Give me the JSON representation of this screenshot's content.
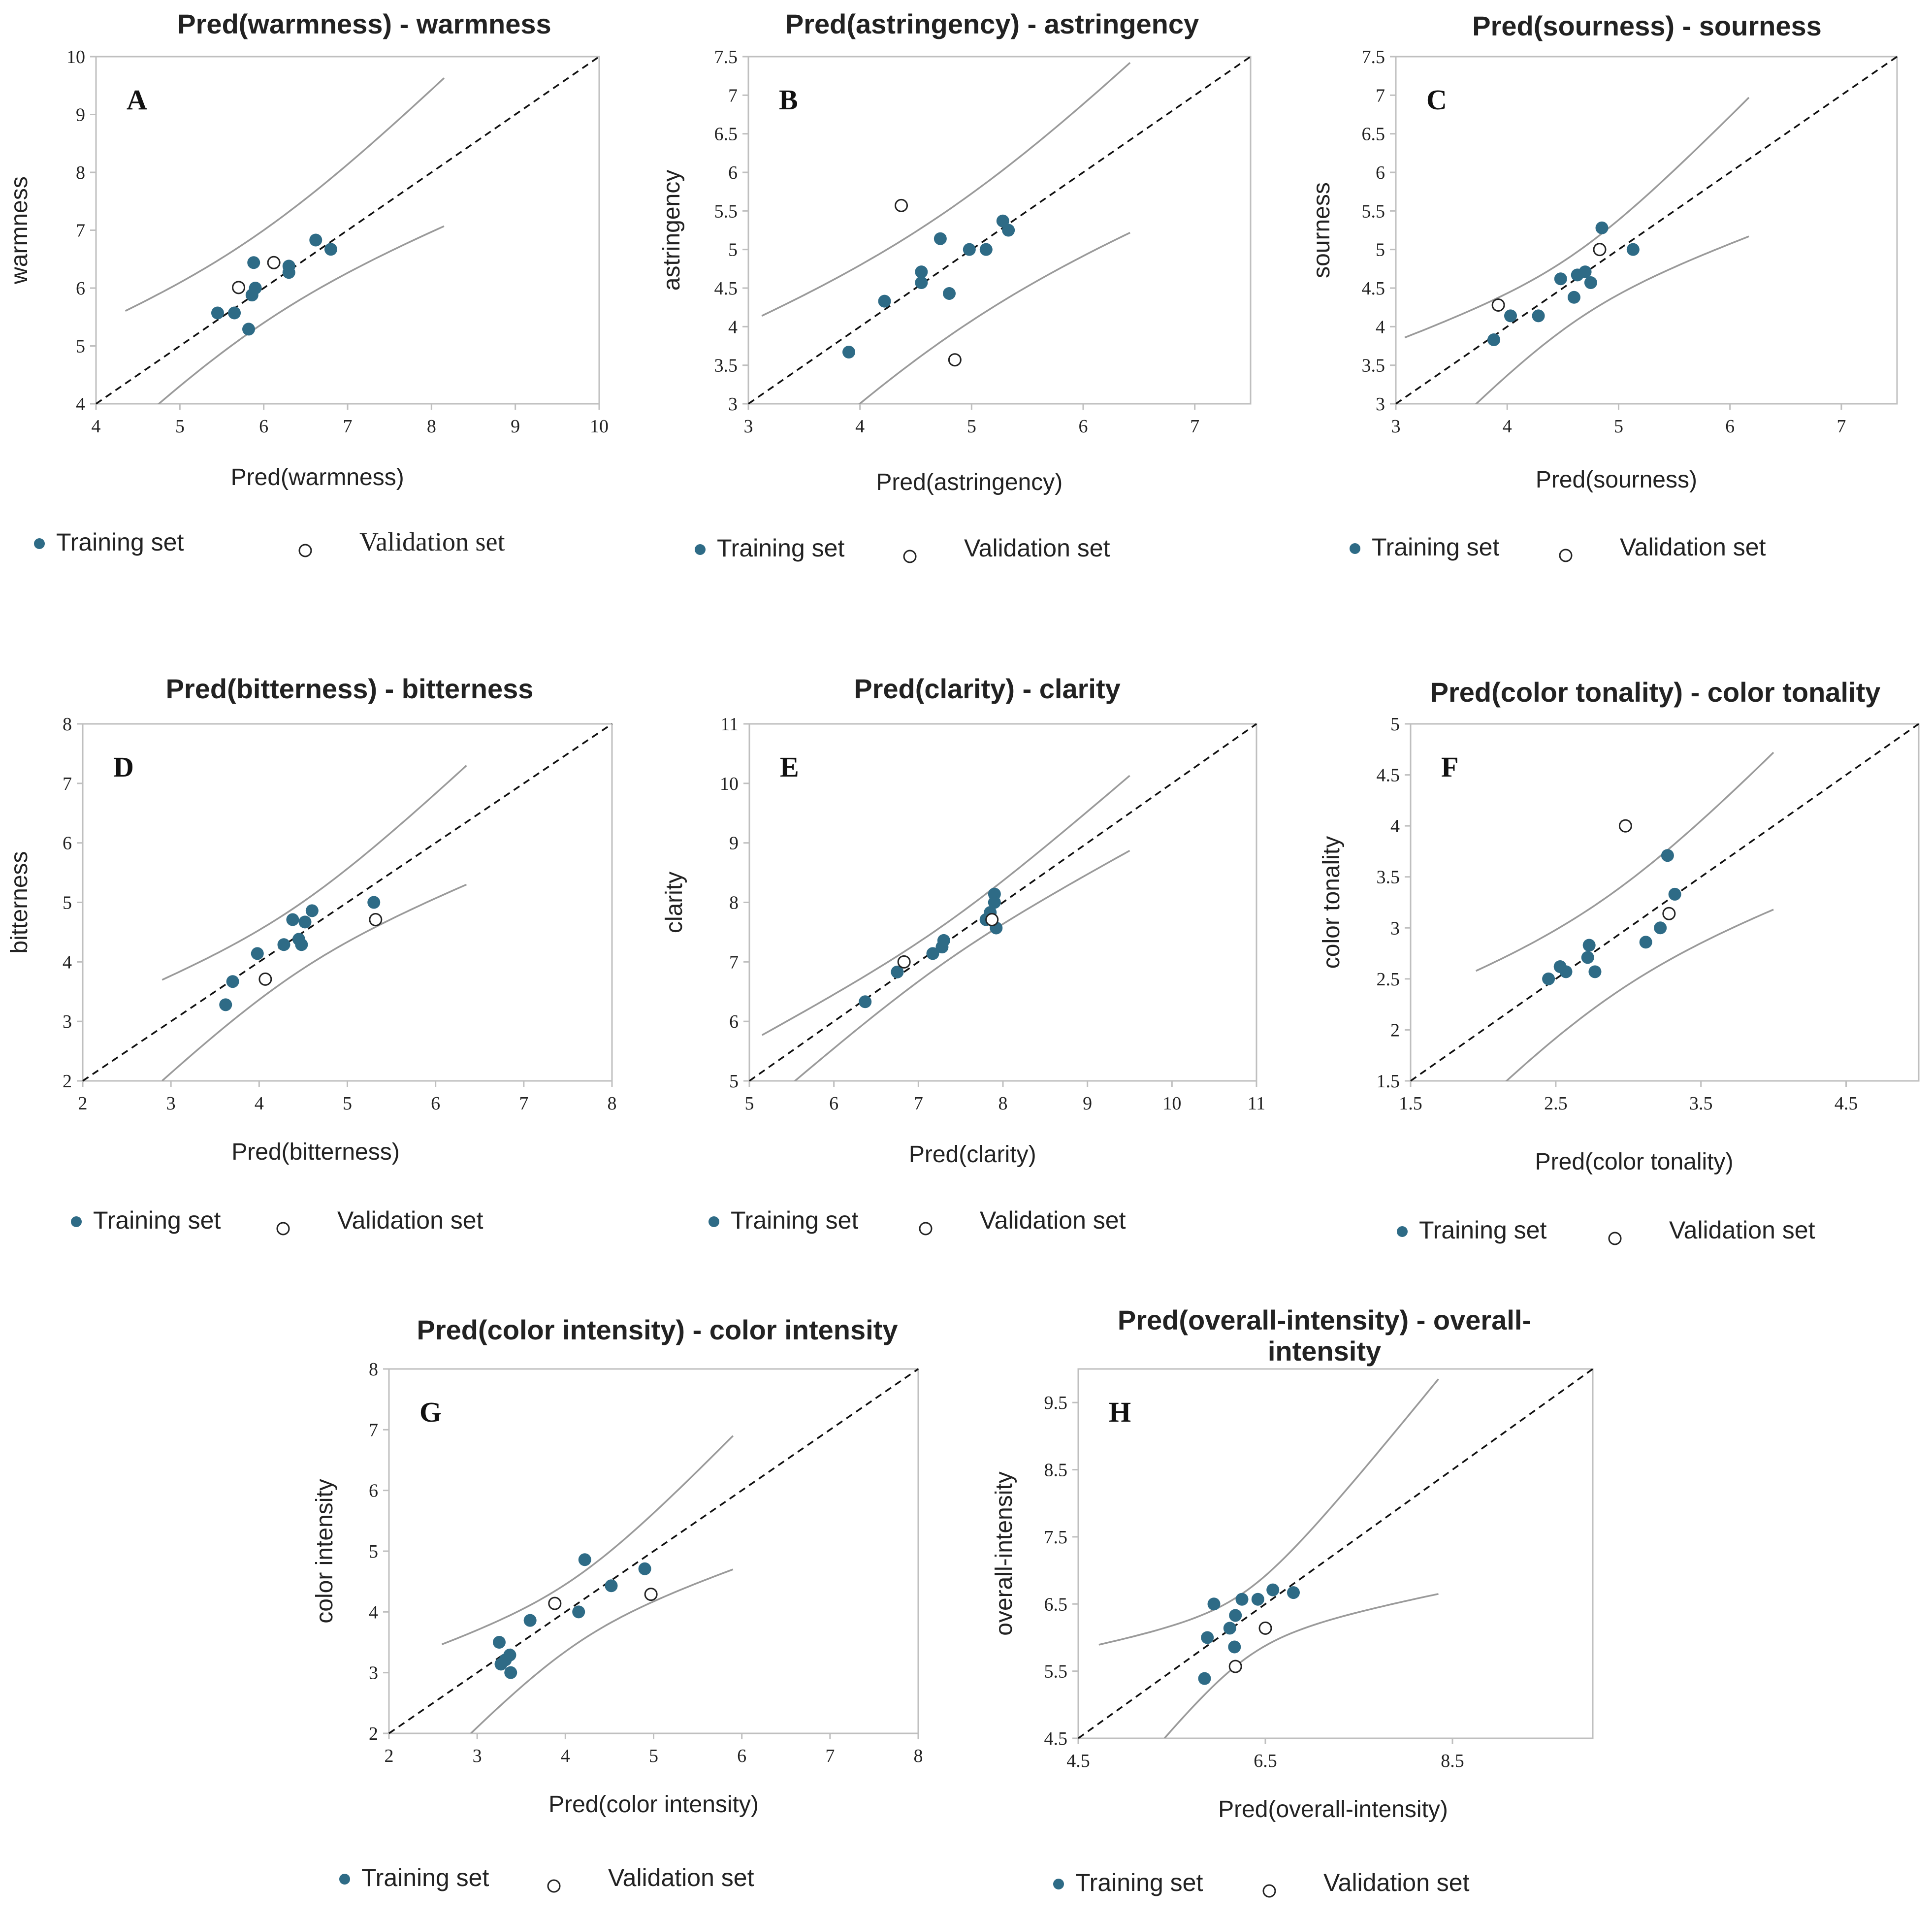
{
  "figure_title": "",
  "colors": {
    "training": "#2e6b86",
    "validation": "#ffffff",
    "validation_stroke": "#222222",
    "diagonal": "#111111",
    "band": "#9a9a9a",
    "frame": "#bfbfbf"
  },
  "chart_data": [
    {
      "type": "scatter",
      "letter": "A",
      "title": "Pred(warmness) - warmness",
      "xlabel": "Pred(warmness)",
      "ylabel": "warmness",
      "xlim": [
        4,
        10
      ],
      "ylim": [
        4,
        10
      ],
      "xticks": [
        4,
        5,
        6,
        7,
        8,
        9,
        10
      ],
      "yticks": [
        4,
        5,
        6,
        7,
        8,
        9,
        10
      ],
      "xtick_labels": [
        "4",
        "5",
        "6",
        "7",
        "8",
        "9",
        "10"
      ],
      "ytick_labels": [
        "4",
        "5",
        "6",
        "7",
        "8",
        "9",
        "10"
      ],
      "legend": {
        "training": "Training set",
        "validation": "Validation set"
      },
      "training": [
        [
          5.45,
          5.57
        ],
        [
          5.65,
          5.57
        ],
        [
          5.82,
          5.29
        ],
        [
          5.86,
          5.88
        ],
        [
          5.88,
          6.44
        ],
        [
          5.9,
          6.0
        ],
        [
          6.3,
          6.38
        ],
        [
          6.3,
          6.27
        ],
        [
          6.62,
          6.83
        ],
        [
          6.8,
          6.67
        ]
      ],
      "validation": [
        [
          5.7,
          6.01
        ],
        [
          6.12,
          6.44
        ]
      ],
      "band_x": [
        4.35,
        8.15
      ],
      "band_center": [
        5.9,
        6.1
      ],
      "band_halfwidth": [
        0.8,
        1.28
      ]
    },
    {
      "type": "scatter",
      "letter": "B",
      "title": "Pred(astringency) - astringency",
      "xlabel": "Pred(astringency)",
      "ylabel": "astringency",
      "xlim": [
        3,
        7.5
      ],
      "ylim": [
        3,
        7.5
      ],
      "xticks": [
        3,
        4,
        5,
        6,
        7
      ],
      "yticks": [
        3,
        3.5,
        4,
        4.5,
        5,
        5.5,
        6,
        6.5,
        7,
        7.5
      ],
      "xtick_labels": [
        "3",
        "4",
        "5",
        "6",
        "7"
      ],
      "ytick_labels": [
        "3",
        "3.5",
        "4",
        "4.5",
        "5",
        "5.5",
        "6",
        "6.5",
        "7",
        "7.5"
      ],
      "legend": {
        "training": "Training set",
        "validation": "Validation set"
      },
      "training": [
        [
          3.9,
          3.67
        ],
        [
          4.22,
          4.33
        ],
        [
          4.55,
          4.57
        ],
        [
          4.55,
          4.71
        ],
        [
          4.72,
          5.14
        ],
        [
          4.8,
          4.43
        ],
        [
          4.98,
          5.0
        ],
        [
          5.13,
          5.0
        ],
        [
          5.28,
          5.37
        ],
        [
          5.33,
          5.25
        ]
      ],
      "validation": [
        [
          4.37,
          5.57
        ],
        [
          4.85,
          3.57
        ]
      ],
      "band_x": [
        3.12,
        6.42
      ],
      "band_center": [
        4.8,
        4.7
      ],
      "band_halfwidth": [
        0.82,
        1.12
      ]
    },
    {
      "type": "scatter",
      "letter": "C",
      "title": "Pred(sourness) - sourness",
      "xlabel": "Pred(sourness)",
      "ylabel": "sourness",
      "xlim": [
        3,
        7.5
      ],
      "ylim": [
        3,
        7.5
      ],
      "xticks": [
        3,
        4,
        5,
        6,
        7
      ],
      "yticks": [
        3,
        3.5,
        4,
        4.5,
        5,
        5.5,
        6,
        6.5,
        7,
        7.5
      ],
      "xtick_labels": [
        "3",
        "4",
        "5",
        "6",
        "7"
      ],
      "ytick_labels": [
        "3",
        "3.5",
        "4",
        "4.5",
        "5",
        "5.5",
        "6",
        "6.5",
        "7",
        "7.5"
      ],
      "legend": {
        "training": "Training set",
        "validation": "Validation set"
      },
      "training": [
        [
          3.88,
          3.83
        ],
        [
          4.03,
          4.14
        ],
        [
          4.28,
          4.14
        ],
        [
          4.48,
          4.62
        ],
        [
          4.6,
          4.38
        ],
        [
          4.63,
          4.67
        ],
        [
          4.7,
          4.71
        ],
        [
          4.75,
          4.57
        ],
        [
          4.85,
          5.28
        ],
        [
          5.13,
          5.0
        ]
      ],
      "validation": [
        [
          3.92,
          4.28
        ],
        [
          4.83,
          5.0
        ]
      ],
      "band_x": [
        3.08,
        6.17
      ],
      "band_center": [
        4.6,
        4.5
      ],
      "band_halfwidth": [
        0.44,
        0.9
      ]
    },
    {
      "type": "scatter",
      "letter": "D",
      "title": "Pred(bitterness) - bitterness",
      "xlabel": "Pred(bitterness)",
      "ylabel": "bitterness",
      "xlim": [
        2,
        8
      ],
      "ylim": [
        2,
        8
      ],
      "xticks": [
        2,
        3,
        4,
        5,
        6,
        7,
        8
      ],
      "yticks": [
        2,
        3,
        4,
        5,
        6,
        7,
        8
      ],
      "xtick_labels": [
        "2",
        "3",
        "4",
        "5",
        "6",
        "7",
        "8"
      ],
      "ytick_labels": [
        "2",
        "3",
        "4",
        "5",
        "6",
        "7",
        "8"
      ],
      "legend": {
        "training": "Training set",
        "validation": "Validation set"
      },
      "training": [
        [
          3.62,
          3.28
        ],
        [
          3.7,
          3.67
        ],
        [
          3.98,
          4.14
        ],
        [
          4.28,
          4.29
        ],
        [
          4.38,
          4.71
        ],
        [
          4.45,
          4.38
        ],
        [
          4.48,
          4.29
        ],
        [
          4.52,
          4.67
        ],
        [
          4.6,
          4.86
        ],
        [
          5.3,
          5.0
        ]
      ],
      "validation": [
        [
          4.07,
          3.71
        ],
        [
          5.32,
          4.71
        ]
      ],
      "band_x": [
        2.9,
        6.35
      ],
      "band_center": [
        4.4,
        4.35
      ],
      "band_halfwidth": [
        0.56,
        1.0
      ]
    },
    {
      "type": "scatter",
      "letter": "E",
      "title": "Pred(clarity) - clarity",
      "xlabel": "Pred(clarity)",
      "ylabel": "clarity",
      "xlim": [
        5,
        11
      ],
      "ylim": [
        5,
        11
      ],
      "xticks": [
        5,
        6,
        7,
        8,
        9,
        10,
        11
      ],
      "yticks": [
        5,
        6,
        7,
        8,
        9,
        10,
        11
      ],
      "xtick_labels": [
        "5",
        "6",
        "7",
        "8",
        "9",
        "10",
        "11"
      ],
      "ytick_labels": [
        "5",
        "6",
        "7",
        "8",
        "9",
        "10",
        "11"
      ],
      "legend": {
        "training": "Training set",
        "validation": "Validation set"
      },
      "training": [
        [
          6.37,
          6.33
        ],
        [
          6.75,
          6.83
        ],
        [
          7.17,
          7.14
        ],
        [
          7.28,
          7.25
        ],
        [
          7.3,
          7.36
        ],
        [
          7.8,
          7.71
        ],
        [
          7.85,
          7.83
        ],
        [
          7.9,
          8.14
        ],
        [
          7.9,
          8.0
        ],
        [
          7.92,
          7.57
        ]
      ],
      "validation": [
        [
          6.83,
          7.0
        ],
        [
          7.87,
          7.71
        ]
      ],
      "band_x": [
        5.15,
        9.5
      ],
      "band_center": [
        7.3,
        7.3
      ],
      "band_halfwidth": [
        0.32,
        0.63
      ]
    },
    {
      "type": "scatter",
      "letter": "F",
      "title": "Pred(color tonality) - color tonality",
      "xlabel": "Pred(color tonality)",
      "ylabel": "color tonality",
      "xlim": [
        1.5,
        5
      ],
      "ylim": [
        1.5,
        5
      ],
      "xticks": [
        1.5,
        2.5,
        3.5,
        4.5
      ],
      "yticks": [
        1.5,
        2,
        2.5,
        3,
        3.5,
        4,
        4.5,
        5
      ],
      "xtick_labels": [
        "1.5",
        "2.5",
        "3.5",
        "4.5"
      ],
      "ytick_labels": [
        "1.5",
        "2",
        "2.5",
        "3",
        "3.5",
        "4",
        "4.5",
        "5"
      ],
      "legend": {
        "training": "Training set",
        "validation": "Validation set"
      },
      "training": [
        [
          2.45,
          2.5
        ],
        [
          2.53,
          2.62
        ],
        [
          2.57,
          2.57
        ],
        [
          2.72,
          2.71
        ],
        [
          2.73,
          2.83
        ],
        [
          2.77,
          2.57
        ],
        [
          3.12,
          2.86
        ],
        [
          3.22,
          3.0
        ],
        [
          3.27,
          3.71
        ],
        [
          3.32,
          3.33
        ]
      ],
      "validation": [
        [
          2.98,
          4.0
        ],
        [
          3.28,
          3.14
        ]
      ],
      "band_x": [
        1.95,
        4.0
      ],
      "band_center": [
        2.85,
        2.8
      ],
      "band_halfwidth": [
        0.5,
        0.77
      ]
    },
    {
      "type": "scatter",
      "letter": "G",
      "title": "Pred(color intensity) - color intensity",
      "xlabel": "Pred(color intensity)",
      "ylabel": "color intensity",
      "xlim": [
        2,
        8
      ],
      "ylim": [
        2,
        8
      ],
      "xticks": [
        2,
        3,
        4,
        5,
        6,
        7,
        8
      ],
      "yticks": [
        2,
        3,
        4,
        5,
        6,
        7,
        8
      ],
      "xtick_labels": [
        "2",
        "3",
        "4",
        "5",
        "6",
        "7",
        "8"
      ],
      "ytick_labels": [
        "2",
        "3",
        "4",
        "5",
        "6",
        "7",
        "8"
      ],
      "legend": {
        "training": "Training set",
        "validation": "Validation set"
      },
      "training": [
        [
          3.25,
          3.5
        ],
        [
          3.27,
          3.14
        ],
        [
          3.32,
          3.21
        ],
        [
          3.37,
          3.29
        ],
        [
          3.38,
          3.0
        ],
        [
          3.6,
          3.86
        ],
        [
          4.15,
          4.0
        ],
        [
          4.22,
          4.86
        ],
        [
          4.52,
          4.43
        ],
        [
          4.9,
          4.71
        ]
      ],
      "validation": [
        [
          3.88,
          4.14
        ],
        [
          4.97,
          4.29
        ]
      ],
      "band_x": [
        2.6,
        5.9
      ],
      "band_center": [
        4.1,
        4.0
      ],
      "band_halfwidth": [
        0.55,
        1.1
      ]
    },
    {
      "type": "scatter",
      "letter": "H",
      "title": "Pred(overall-intensity) - overall-intensity",
      "xlabel": "Pred(overall-intensity)",
      "ylabel": "overall-intensity",
      "xlim": [
        4.5,
        10
      ],
      "ylim": [
        4.5,
        10
      ],
      "xticks": [
        4.5,
        6.5,
        8.5
      ],
      "yticks": [
        4.5,
        5.5,
        6.5,
        7.5,
        8.5,
        9.5
      ],
      "xtick_labels": [
        "4.5",
        "6.5",
        "8.5"
      ],
      "ytick_labels": [
        "4.5",
        "5.5",
        "6.5",
        "7.5",
        "8.5",
        "9.5"
      ],
      "legend": {
        "training": "Training set",
        "validation": "Validation set"
      },
      "training": [
        [
          5.85,
          5.39
        ],
        [
          5.88,
          6.0
        ],
        [
          5.95,
          6.5
        ],
        [
          6.12,
          6.14
        ],
        [
          6.17,
          5.86
        ],
        [
          6.18,
          6.33
        ],
        [
          6.25,
          6.57
        ],
        [
          6.42,
          6.57
        ],
        [
          6.58,
          6.71
        ],
        [
          6.8,
          6.67
        ]
      ],
      "validation": [
        [
          6.18,
          5.57
        ],
        [
          6.5,
          6.14
        ]
      ],
      "band_x": [
        4.72,
        8.35
      ],
      "band_center": [
        6.3,
        6.2
      ],
      "band_halfwidth": [
        0.5,
        1.6
      ]
    }
  ]
}
